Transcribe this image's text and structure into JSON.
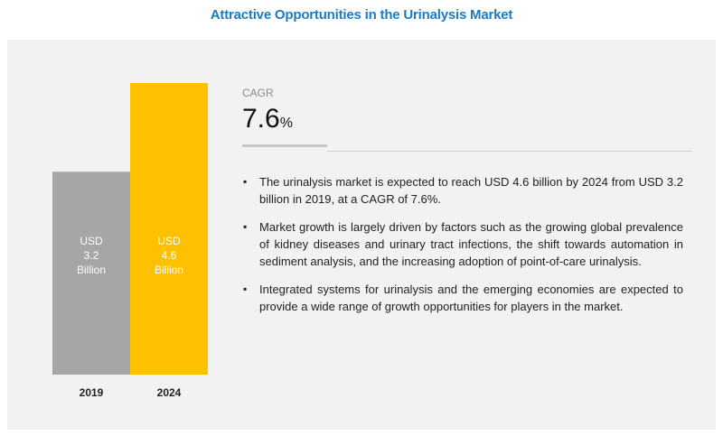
{
  "title": "Attractive Opportunities in the Urinalysis Market",
  "chart_data": {
    "type": "bar",
    "categories": [
      "2019",
      "2024"
    ],
    "values": [
      3.2,
      4.6
    ],
    "bar_labels": [
      [
        "USD",
        "3.2",
        "Billion"
      ],
      [
        "USD",
        "4.6",
        "Billion"
      ]
    ],
    "colors": [
      "#a6a6a6",
      "#ffc000"
    ],
    "ylim": [
      0,
      4.6
    ],
    "grid": false,
    "legend": "none"
  },
  "cagr": {
    "label": "CAGR",
    "value": "7.6",
    "unit": "%"
  },
  "bullets": [
    "The urinalysis market is expected to reach USD 4.6 billion by 2024 from USD 3.2 billion in 2019, at a CAGR of 7.6%.",
    "Market growth is largely driven by factors such as the growing global prevalence of kidney diseases and urinary tract infections, the shift towards automation in sediment analysis, and the increasing adoption of point-of-care urinalysis.",
    "Integrated systems for urinalysis and the emerging economies are expected to provide a wide range of growth opportunities for players in the market."
  ],
  "bullet_symbol": "▪"
}
